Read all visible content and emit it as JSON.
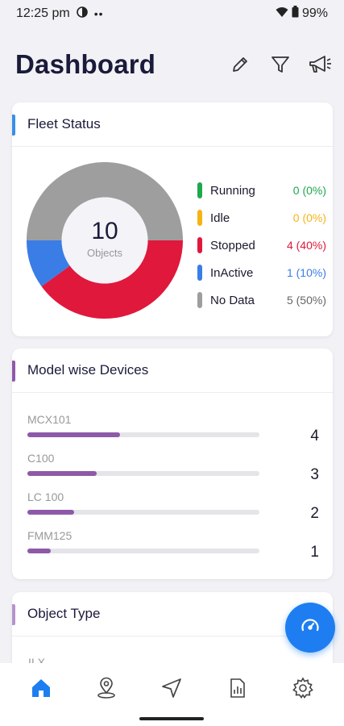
{
  "status_bar": {
    "time": "12:25 pm",
    "battery": "99%"
  },
  "header": {
    "title": "Dashboard",
    "icons": [
      "pencil-icon",
      "filter-icon",
      "megaphone-icon"
    ]
  },
  "fleet_status": {
    "title": "Fleet Status",
    "total": "10",
    "total_label": "Objects",
    "legend": [
      {
        "name": "Running",
        "value": "0 (0%)",
        "color": "#1fa84f",
        "count": 0
      },
      {
        "name": "Idle",
        "value": "0 (0%)",
        "color": "#f5b416",
        "count": 0
      },
      {
        "name": "Stopped",
        "value": "4 (40%)",
        "color": "#e0183c",
        "count": 4
      },
      {
        "name": "InActive",
        "value": "1 (10%)",
        "color": "#3a7de6",
        "count": 1
      },
      {
        "name": "No Data",
        "value": "5 (50%)",
        "color": "#9e9e9e",
        "count": 5
      }
    ]
  },
  "model_devices": {
    "title": "Model wise Devices",
    "accent": "#8e5aa8",
    "max": 10,
    "items": [
      {
        "name": "MCX101",
        "count": "4",
        "value": 4
      },
      {
        "name": "C100",
        "count": "3",
        "value": 3
      },
      {
        "name": "LC 100",
        "count": "2",
        "value": 2
      },
      {
        "name": "FMM125",
        "count": "1",
        "value": 1
      }
    ]
  },
  "object_type": {
    "title": "Object Type",
    "accent": "#b693cc",
    "peek": "II X"
  },
  "colors": {
    "primary": "#1e7ef1",
    "fleet_accent": "#3a8ee6"
  },
  "bottom_nav": [
    "home-icon",
    "location-icon",
    "navigation-icon",
    "reports-icon",
    "settings-icon"
  ]
}
